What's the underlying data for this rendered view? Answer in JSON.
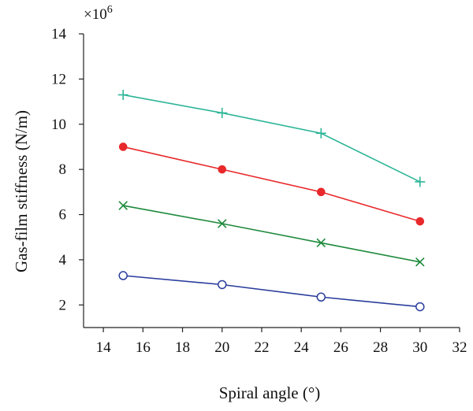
{
  "chart_data": {
    "type": "line",
    "xlabel": "Spiral angle (°)",
    "ylabel": "Gas-film stiffness (N/m)",
    "y_multiplier_label": "×10",
    "y_multiplier_exp": "6",
    "xlim": [
      13,
      32
    ],
    "ylim": [
      1,
      14
    ],
    "xticks": [
      14,
      16,
      18,
      20,
      22,
      24,
      26,
      28,
      30,
      32
    ],
    "yticks": [
      2,
      4,
      6,
      8,
      10,
      12,
      14
    ],
    "grid": false,
    "x": [
      15,
      20,
      25,
      30
    ],
    "series": [
      {
        "marker": "plus",
        "color": "#2cb597",
        "values": [
          11.3,
          10.5,
          9.6,
          7.45
        ]
      },
      {
        "marker": "dot",
        "color": "#e8282a",
        "values": [
          9.0,
          8.0,
          7.0,
          5.7
        ]
      },
      {
        "marker": "x",
        "color": "#1e8a3c",
        "values": [
          6.4,
          5.6,
          4.75,
          3.9
        ]
      },
      {
        "marker": "circle",
        "color": "#2a3d9c",
        "values": [
          3.3,
          2.9,
          2.35,
          1.92
        ]
      }
    ]
  }
}
